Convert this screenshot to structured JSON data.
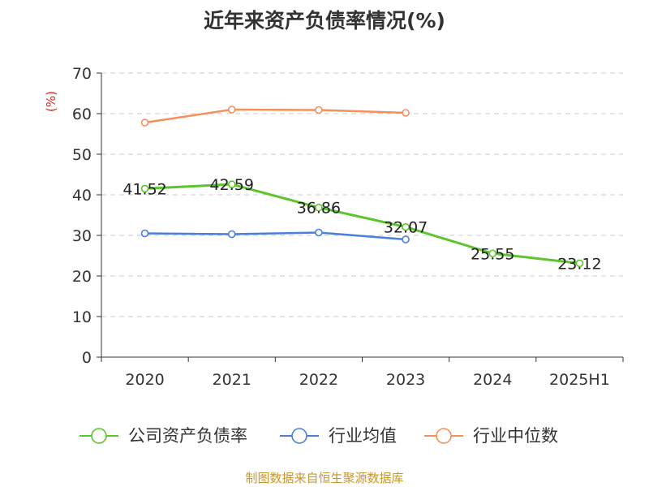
{
  "chart_data": {
    "type": "line",
    "title": "近年来资产负债率情况(%)",
    "ylabel": "(%)",
    "xlabel": "",
    "ylim": [
      0,
      70
    ],
    "yticks": [
      0,
      10,
      20,
      30,
      40,
      50,
      60,
      70
    ],
    "grid": true,
    "legend_position": "bottom",
    "categories": [
      "2020",
      "2021",
      "2022",
      "2023",
      "2024",
      "2025H1"
    ],
    "series": [
      {
        "name": "公司资产负债率",
        "color": "#5cc52b",
        "values": [
          41.52,
          42.59,
          36.86,
          32.07,
          25.55,
          23.12
        ],
        "labels": [
          "41.52",
          "42.59",
          "36.86",
          "32.07",
          "25.55",
          "23.12"
        ]
      },
      {
        "name": "行业均值",
        "color": "#4a7fdc",
        "values": [
          30.5,
          30.3,
          30.7,
          29.0,
          null,
          null
        ]
      },
      {
        "name": "行业中位数",
        "color": "#f4905a",
        "values": [
          57.8,
          61.0,
          60.9,
          60.2,
          null,
          null
        ]
      }
    ]
  },
  "source": "制图数据来自恒生聚源数据库",
  "colors": {
    "axis": "#333333",
    "grid": "#cccccc",
    "ylabel": "#e02020",
    "source": "#c8962e"
  }
}
